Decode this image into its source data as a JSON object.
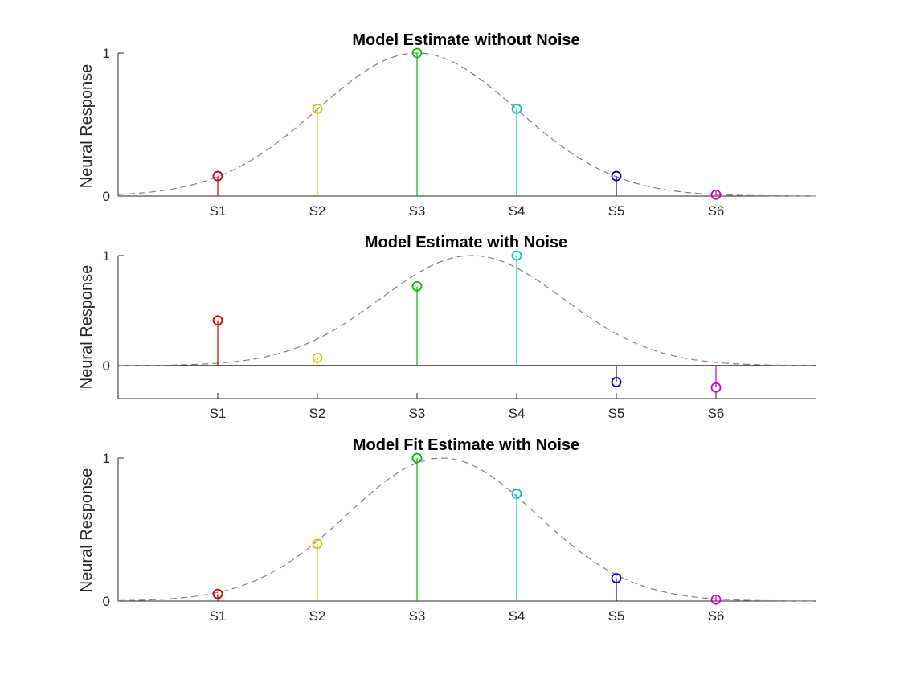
{
  "chart_data": [
    {
      "type": "stem",
      "title": "Model Estimate without Noise",
      "ylabel": "Neural Response",
      "xlabel": "",
      "categories": [
        "S1",
        "S2",
        "S3",
        "S4",
        "S5",
        "S6"
      ],
      "x": [
        1,
        2,
        3,
        4,
        5,
        6
      ],
      "values": [
        0.14,
        0.61,
        1.0,
        0.61,
        0.14,
        0.01
      ],
      "colors": [
        "#cc0000",
        "#cccc00",
        "#00bb00",
        "#00cccc",
        "#0000bb",
        "#cc00cc"
      ],
      "yticks": [
        0,
        1
      ],
      "xlim": [
        0,
        7
      ],
      "ylim": [
        0,
        1
      ],
      "curve": {
        "style": "dashed",
        "color": "#808080",
        "peak_x": 3,
        "sigma": 1.0,
        "amplitude": 1.0
      },
      "grid": false
    },
    {
      "type": "stem",
      "title": "Model Estimate with Noise",
      "ylabel": "Neural Response",
      "xlabel": "",
      "categories": [
        "S1",
        "S2",
        "S3",
        "S4",
        "S5",
        "S6"
      ],
      "x": [
        1,
        2,
        3,
        4,
        5,
        6
      ],
      "values": [
        0.41,
        0.07,
        0.72,
        1.0,
        -0.15,
        -0.2
      ],
      "colors": [
        "#cc0000",
        "#cccc00",
        "#00bb00",
        "#00cccc",
        "#0000bb",
        "#cc00cc"
      ],
      "yticks": [
        0,
        1
      ],
      "xlim": [
        0,
        7
      ],
      "ylim": [
        -0.3,
        1
      ],
      "curve": {
        "style": "dashed",
        "color": "#808080",
        "peak_x": 3.55,
        "sigma": 0.92,
        "amplitude": 1.0
      },
      "grid": false
    },
    {
      "type": "stem",
      "title": "Model Fit Estimate with Noise",
      "ylabel": "Neural Response",
      "xlabel": "",
      "categories": [
        "S1",
        "S2",
        "S3",
        "S4",
        "S5",
        "S6"
      ],
      "x": [
        1,
        2,
        3,
        4,
        5,
        6
      ],
      "values": [
        0.05,
        0.4,
        1.0,
        0.75,
        0.16,
        0.01
      ],
      "colors": [
        "#cc0000",
        "#cccc00",
        "#00bb00",
        "#00cccc",
        "#0000bb",
        "#cc00cc"
      ],
      "yticks": [
        0,
        1
      ],
      "xlim": [
        0,
        7
      ],
      "ylim": [
        0,
        1
      ],
      "curve": {
        "style": "dashed",
        "color": "#808080",
        "peak_x": 3.25,
        "sigma": 0.95,
        "amplitude": 1.0
      },
      "grid": false
    }
  ]
}
